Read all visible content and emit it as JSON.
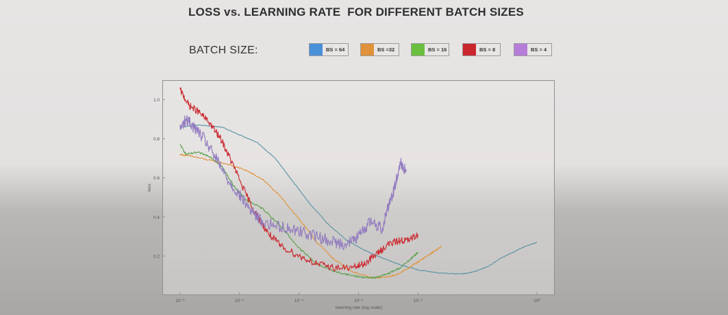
{
  "title": "LOSS vs. LEARNING RATE  FOR DIFFERENT BATCH SIZES",
  "legend_label": "BATCH SIZE:",
  "chart_data": {
    "type": "line",
    "title": "LOSS vs. LEARNING RATE  FOR DIFFERENT BATCH SIZES",
    "xlabel": "learning rate (log scale)",
    "ylabel": "loss",
    "x_scale": "log",
    "xlim": [
      1e-06,
      1
    ],
    "ylim": [
      0.0,
      1.1
    ],
    "x_ticks": [
      {
        "value": 1e-06,
        "label": "10⁻⁶"
      },
      {
        "value": 1e-05,
        "label": "10⁻⁵"
      },
      {
        "value": 0.0001,
        "label": "10⁻⁴"
      },
      {
        "value": 0.001,
        "label": "10⁻³"
      },
      {
        "value": 0.01,
        "label": "10⁻²"
      },
      {
        "value": 1,
        "label": "10⁰"
      }
    ],
    "y_ticks": [
      {
        "value": 0.2,
        "label": "0.2"
      },
      {
        "value": 0.4,
        "label": "0.4"
      },
      {
        "value": 0.6,
        "label": "0.6"
      },
      {
        "value": 0.8,
        "label": "0.8"
      },
      {
        "value": 1.0,
        "label": "1.0"
      }
    ],
    "grid": false,
    "legend_position": "top",
    "series": [
      {
        "name": "BS = 64",
        "color": "#4a90d9",
        "line_color": "#5b93a6",
        "noise": 0.002,
        "points": [
          [
            -6.0,
            0.86
          ],
          [
            -5.7,
            0.87
          ],
          [
            -5.3,
            0.86
          ],
          [
            -5.0,
            0.82
          ],
          [
            -4.7,
            0.78
          ],
          [
            -4.4,
            0.7
          ],
          [
            -4.1,
            0.58
          ],
          [
            -3.8,
            0.46
          ],
          [
            -3.5,
            0.36
          ],
          [
            -3.2,
            0.28
          ],
          [
            -2.9,
            0.23
          ],
          [
            -2.6,
            0.19
          ],
          [
            -2.3,
            0.155
          ],
          [
            -2.0,
            0.13
          ],
          [
            -1.7,
            0.115
          ],
          [
            -1.4,
            0.11
          ],
          [
            -1.2,
            0.11
          ],
          [
            -1.0,
            0.125
          ],
          [
            -0.8,
            0.15
          ],
          [
            -0.6,
            0.19
          ],
          [
            -0.4,
            0.22
          ],
          [
            -0.2,
            0.25
          ],
          [
            0.0,
            0.27
          ]
        ]
      },
      {
        "name": "BS =32",
        "color": "#e0923b",
        "line_color": "#e0923b",
        "noise": 0.004,
        "points": [
          [
            -6.0,
            0.72
          ],
          [
            -5.8,
            0.71
          ],
          [
            -5.5,
            0.69
          ],
          [
            -5.2,
            0.67
          ],
          [
            -4.9,
            0.64
          ],
          [
            -4.6,
            0.59
          ],
          [
            -4.3,
            0.5
          ],
          [
            -4.0,
            0.39
          ],
          [
            -3.7,
            0.27
          ],
          [
            -3.4,
            0.18
          ],
          [
            -3.1,
            0.12
          ],
          [
            -2.8,
            0.09
          ],
          [
            -2.6,
            0.09
          ],
          [
            -2.4,
            0.1
          ],
          [
            -2.2,
            0.13
          ],
          [
            -2.0,
            0.17
          ],
          [
            -1.8,
            0.21
          ],
          [
            -1.6,
            0.25
          ]
        ]
      },
      {
        "name": "BS = 16",
        "color": "#6bbf3f",
        "line_color": "#5aa04b",
        "noise": 0.005,
        "points": [
          [
            -6.0,
            0.77
          ],
          [
            -5.9,
            0.72
          ],
          [
            -5.7,
            0.73
          ],
          [
            -5.5,
            0.71
          ],
          [
            -5.3,
            0.66
          ],
          [
            -5.1,
            0.56
          ],
          [
            -4.9,
            0.49
          ],
          [
            -4.6,
            0.44
          ],
          [
            -4.3,
            0.35
          ],
          [
            -4.0,
            0.24
          ],
          [
            -3.7,
            0.16
          ],
          [
            -3.4,
            0.12
          ],
          [
            -3.1,
            0.1
          ],
          [
            -2.9,
            0.09
          ],
          [
            -2.7,
            0.09
          ],
          [
            -2.5,
            0.11
          ],
          [
            -2.3,
            0.14
          ],
          [
            -2.1,
            0.19
          ],
          [
            -2.0,
            0.22
          ]
        ]
      },
      {
        "name": "BS = 8",
        "color": "#c9262d",
        "line_color": "#c9262d",
        "noise": 0.018,
        "points": [
          [
            -6.0,
            1.05
          ],
          [
            -5.85,
            0.97
          ],
          [
            -5.7,
            0.94
          ],
          [
            -5.5,
            0.88
          ],
          [
            -5.3,
            0.79
          ],
          [
            -5.1,
            0.66
          ],
          [
            -4.9,
            0.52
          ],
          [
            -4.7,
            0.4
          ],
          [
            -4.5,
            0.31
          ],
          [
            -4.3,
            0.25
          ],
          [
            -4.0,
            0.2
          ],
          [
            -3.7,
            0.16
          ],
          [
            -3.4,
            0.14
          ],
          [
            -3.1,
            0.14
          ],
          [
            -2.9,
            0.16
          ],
          [
            -2.7,
            0.21
          ],
          [
            -2.5,
            0.26
          ],
          [
            -2.3,
            0.28
          ],
          [
            -2.15,
            0.28
          ],
          [
            -2.0,
            0.31
          ]
        ]
      },
      {
        "name": "BS = 4",
        "color": "#b57dd8",
        "line_color": "#8f78bf",
        "noise": 0.03,
        "points": [
          [
            -6.0,
            0.85
          ],
          [
            -5.9,
            0.9
          ],
          [
            -5.8,
            0.87
          ],
          [
            -5.6,
            0.8
          ],
          [
            -5.4,
            0.7
          ],
          [
            -5.2,
            0.59
          ],
          [
            -5.0,
            0.51
          ],
          [
            -4.8,
            0.43
          ],
          [
            -4.6,
            0.37
          ],
          [
            -4.3,
            0.35
          ],
          [
            -4.0,
            0.33
          ],
          [
            -3.7,
            0.3
          ],
          [
            -3.4,
            0.27
          ],
          [
            -3.2,
            0.26
          ],
          [
            -3.0,
            0.3
          ],
          [
            -2.8,
            0.38
          ],
          [
            -2.6,
            0.34
          ],
          [
            -2.5,
            0.46
          ],
          [
            -2.4,
            0.54
          ],
          [
            -2.3,
            0.68
          ],
          [
            -2.2,
            0.63
          ]
        ]
      }
    ]
  }
}
